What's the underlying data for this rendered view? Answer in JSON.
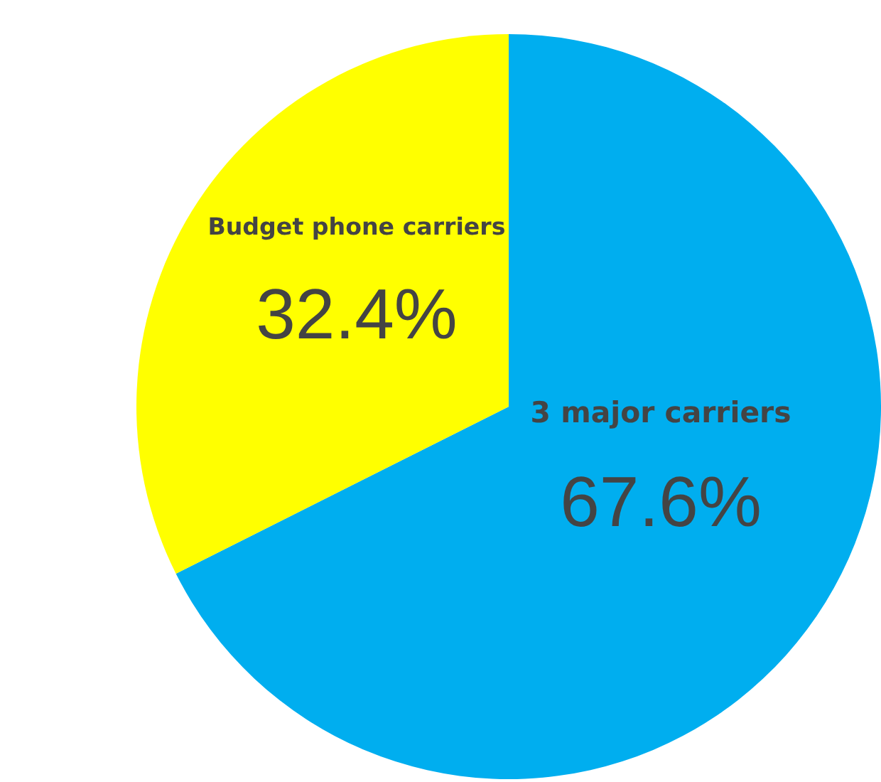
{
  "chart_data": {
    "type": "pie",
    "categories": [
      "3 major carriers",
      "Budget phone carriers"
    ],
    "values": [
      67.6,
      32.4
    ],
    "colors": [
      "#00aeef",
      "#ffff00"
    ],
    "value_labels": [
      "67.6%",
      "32.4%"
    ],
    "legend": false
  }
}
